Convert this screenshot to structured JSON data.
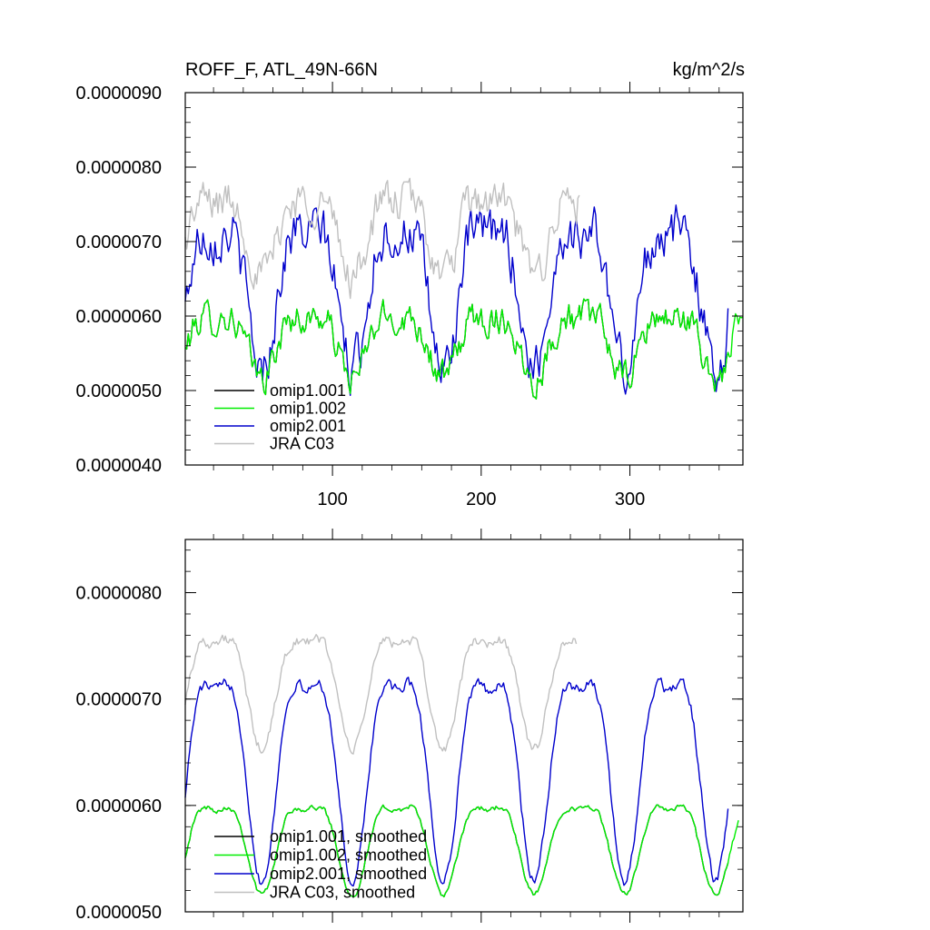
{
  "chart_data": [
    {
      "type": "line",
      "title": "ROFF_F, ATL_49N-66N",
      "units": "kg/m^2/s",
      "xlim": [
        1,
        376
      ],
      "ylim": [
        4e-06,
        9e-06
      ],
      "xticks": [
        100,
        200,
        300
      ],
      "xtick_labels": [
        "100",
        "200",
        "300"
      ],
      "yticks": [
        4e-06,
        5e-06,
        6e-06,
        7e-06,
        8e-06,
        9e-06
      ],
      "ytick_labels": [
        "0.0000040",
        "0.0000050",
        "0.0000060",
        "0.0000070",
        "0.0000080",
        "0.0000090"
      ],
      "grid": false,
      "legend_position": "bottom-left",
      "series": [
        {
          "name": "omip1.001",
          "color": "#000000",
          "x_start": 1,
          "x_end": 366,
          "period": 61,
          "base": 5.7e-06,
          "amplitude": 4e-07,
          "noise": 4e-07
        },
        {
          "name": "omip1.002",
          "color": "#00ee00",
          "x_start": 1,
          "x_end": 376,
          "period": 61,
          "base": 5.7e-06,
          "amplitude": 4e-07,
          "noise": 4e-07
        },
        {
          "name": "omip2.001",
          "color": "#0000cc",
          "x_start": 1,
          "x_end": 366,
          "period": 61,
          "base": 6.5e-06,
          "amplitude": 9e-07,
          "noise": 6e-07
        },
        {
          "name": "JRA C03",
          "color": "#c0c0c0",
          "x_start": 1,
          "x_end": 266,
          "period": 61,
          "base": 7.2e-06,
          "amplitude": 5e-07,
          "noise": 5e-07
        }
      ]
    },
    {
      "type": "line",
      "title": "",
      "xlim": [
        1,
        376
      ],
      "ylim": [
        5e-06,
        8.5e-06
      ],
      "xticks": [
        100,
        200,
        300
      ],
      "yticks": [
        5e-06,
        6e-06,
        7e-06,
        8e-06
      ],
      "ytick_labels": [
        "0.0000050",
        "0.0000060",
        "0.0000070",
        "0.0000080"
      ],
      "grid": false,
      "legend_position": "bottom-left",
      "series": [
        {
          "name": "omip1.001, smoothed",
          "color": "#000000",
          "x_start": 1,
          "x_end": 366,
          "period": 61,
          "base": 5.7e-06,
          "amplitude": 4e-07,
          "noise": 5e-08
        },
        {
          "name": "omip1.002, smoothed",
          "color": "#00ee00",
          "x_start": 1,
          "x_end": 373,
          "period": 61,
          "base": 5.7e-06,
          "amplitude": 4e-07,
          "noise": 5e-08
        },
        {
          "name": "omip2.001, smoothed",
          "color": "#0000cc",
          "x_start": 1,
          "x_end": 366,
          "period": 61,
          "base": 6.5e-06,
          "amplitude": 9e-07,
          "noise": 1e-07
        },
        {
          "name": "JRA C03, smoothed",
          "color": "#c0c0c0",
          "x_start": 1,
          "x_end": 264,
          "period": 61,
          "base": 7.2e-06,
          "amplitude": 5e-07,
          "noise": 1e-07
        }
      ]
    }
  ]
}
